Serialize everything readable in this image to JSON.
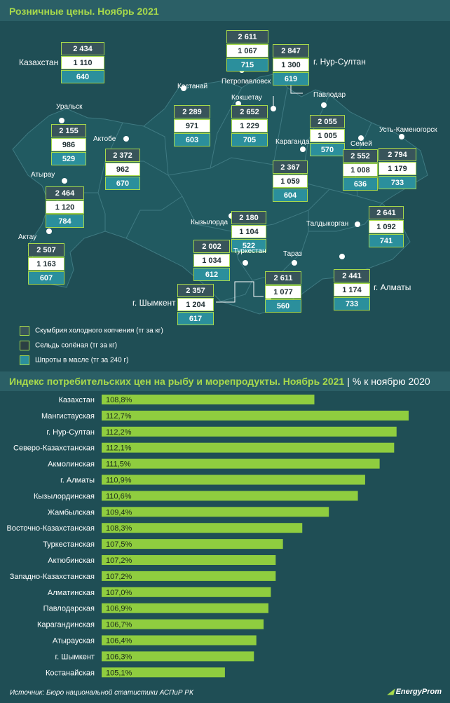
{
  "map_title": "Розничные цены. Ноябрь 2021",
  "regions": [
    {
      "id": "kaz",
      "name": "Казахстан",
      "values": [
        "2 434",
        "1 110",
        "640"
      ]
    },
    {
      "id": "petro",
      "name": "Петропавловск",
      "values": [
        "2 611",
        "1 067",
        "715"
      ]
    },
    {
      "id": "nur",
      "name": "г. Нур-Султан",
      "values": [
        "2 847",
        "1 300",
        "619"
      ]
    },
    {
      "id": "kost",
      "name": "Костанай",
      "values": [
        "2 289",
        "971",
        "603"
      ]
    },
    {
      "id": "kok",
      "name": "Кокшетау",
      "values": [
        "2 652",
        "1 229",
        "705"
      ]
    },
    {
      "id": "pav",
      "name": "Павлодар",
      "values": [
        "2 055",
        "1 005",
        "570"
      ]
    },
    {
      "id": "ural",
      "name": "Уральск",
      "values": [
        "2 155",
        "986",
        "529"
      ]
    },
    {
      "id": "akt",
      "name": "Актобе",
      "values": [
        "2 372",
        "962",
        "670"
      ]
    },
    {
      "id": "sem",
      "name": "Семей",
      "values": [
        "2 552",
        "1 008",
        "636"
      ]
    },
    {
      "id": "ust",
      "name": "Усть-Каменогорск",
      "values": [
        "2 794",
        "1 179",
        "733"
      ]
    },
    {
      "id": "kar",
      "name": "Караганда",
      "values": [
        "2 367",
        "1 059",
        "604"
      ]
    },
    {
      "id": "atr",
      "name": "Атырау",
      "values": [
        "2 464",
        "1 120",
        "784"
      ]
    },
    {
      "id": "kyz",
      "name": "Кызылорда",
      "values": [
        "2 180",
        "1 104",
        "522"
      ]
    },
    {
      "id": "tal",
      "name": "Талдыкорган",
      "values": [
        "2 641",
        "1 092",
        "741"
      ]
    },
    {
      "id": "aktau",
      "name": "Актау",
      "values": [
        "2 507",
        "1 163",
        "607"
      ]
    },
    {
      "id": "tur",
      "name": "Туркестан",
      "values": [
        "2 002",
        "1 034",
        "612"
      ]
    },
    {
      "id": "tar",
      "name": "Тараз",
      "values": [
        "2 611",
        "1 077",
        "560"
      ]
    },
    {
      "id": "alm",
      "name": "г. Алматы",
      "values": [
        "2 441",
        "1 174",
        "733"
      ]
    },
    {
      "id": "shym",
      "name": "г. Шымкент",
      "values": [
        "2 357",
        "1 204",
        "617"
      ]
    }
  ],
  "legend": [
    "Скумбрия холодного копчения (тг за кг)",
    "Сельдь солёная (тг за кг)",
    "Шпроты в масле (тг за 240 г)"
  ],
  "colors": {
    "background": "#1f4e55",
    "header": "#2b5f66",
    "accent": "#a7d94b",
    "mackerel": "#38545a",
    "herring": "#ffffff",
    "sprats": "#2b8f9c",
    "map_land": "#215a61",
    "bar": "#8fcd3f"
  },
  "chart_title": "Индекс потребительских цен на рыбу и морепродукты. Ноябрь 2021",
  "chart_subtitle": "% к ноябрю 2020",
  "chart_data": {
    "type": "bar",
    "orientation": "horizontal",
    "title": "Индекс потребительских цен на рыбу и морепродукты. Ноябрь 2021",
    "subtitle": "% к ноябрю 2020",
    "categories": [
      "Казахстан",
      "Мангистауская",
      "г. Нур-Султан",
      "Северо-Казахстанская",
      "Акмолинская",
      "г. Алматы",
      "Кызылординская",
      "Жамбылская",
      "Восточно-Казахстанская",
      "Туркестанская",
      "Актюбинская",
      "Западно-Казахстанская",
      "Алматинская",
      "Павлодарская",
      "Карагандинская",
      "Атырауская",
      "г. Шымкент",
      "Костанайская"
    ],
    "values": [
      108.8,
      112.7,
      112.2,
      112.1,
      111.5,
      110.9,
      110.6,
      109.4,
      108.3,
      107.5,
      107.2,
      107.2,
      107.0,
      106.9,
      106.7,
      106.4,
      106.3,
      105.1
    ],
    "labels": [
      "108,8%",
      "112,7%",
      "112,2%",
      "112,1%",
      "111,5%",
      "110,9%",
      "110,6%",
      "109,4%",
      "108,3%",
      "107,5%",
      "107,2%",
      "107,2%",
      "107,0%",
      "106,9%",
      "106,7%",
      "106,4%",
      "106,3%",
      "105,1%"
    ]
  },
  "source": "Источник: Бюро национальной статистики АСПиР РК",
  "logo": "EnergyProm"
}
